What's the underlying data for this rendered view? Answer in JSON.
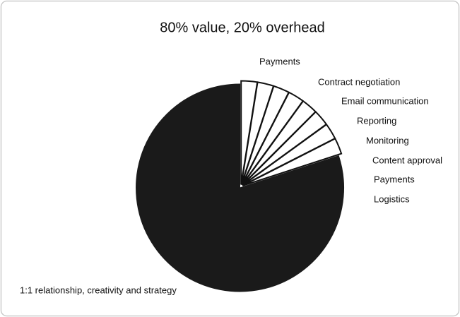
{
  "chart_data": {
    "type": "pie",
    "title": "80% value, 20% overhead",
    "categories": [
      "Payments",
      "Contract negotiation",
      "Email communication",
      "Reporting",
      "Monitoring",
      "Content approval",
      "Payments",
      "Logistics",
      "1:1 relationship, creativity and strategy"
    ],
    "values": [
      2.5,
      2.5,
      2.5,
      2.5,
      2.5,
      2.5,
      2.5,
      2.5,
      80
    ],
    "colors": [
      "#ffffff",
      "#ffffff",
      "#ffffff",
      "#ffffff",
      "#ffffff",
      "#ffffff",
      "#ffffff",
      "#ffffff",
      "#1a1a1a"
    ]
  }
}
